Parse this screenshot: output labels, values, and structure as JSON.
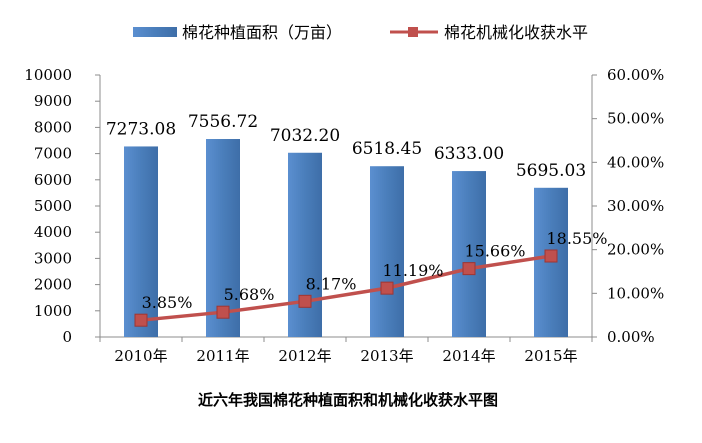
{
  "chart_data": {
    "type": "bar+line",
    "title": "近六年我国棉花种植面积和机械化收获水平图",
    "categories": [
      "2010年",
      "2011年",
      "2012年",
      "2013年",
      "2014年",
      "2015年"
    ],
    "series": [
      {
        "name": "棉花种植面积（万亩）",
        "type": "bar",
        "axis": "left",
        "values": [
          7273.08,
          7556.72,
          7032.2,
          6518.45,
          6333.0,
          5695.03
        ],
        "labels": [
          "7273.08",
          "7556.72",
          "7032.20",
          "6518.45",
          "6333.00",
          "5695.03"
        ],
        "color": "#4a7ebb"
      },
      {
        "name": "棉花机械化收获水平",
        "type": "line",
        "axis": "right",
        "values": [
          3.85,
          5.68,
          8.17,
          11.19,
          15.66,
          18.55
        ],
        "labels": [
          "3.85%",
          "5.68%",
          "8.17%",
          "11.19%",
          "15.66%",
          "18.55%"
        ],
        "color": "#c0504d"
      }
    ],
    "y_left": {
      "range": [
        0,
        10000
      ],
      "ticks": [
        "0",
        "1000",
        "2000",
        "3000",
        "4000",
        "5000",
        "6000",
        "7000",
        "8000",
        "9000",
        "10000"
      ]
    },
    "y_right": {
      "range": [
        0,
        60
      ],
      "ticks": [
        "0.00%",
        "10.00%",
        "20.00%",
        "30.00%",
        "40.00%",
        "50.00%",
        "60.00%"
      ]
    },
    "legend_position": "top",
    "grid": false
  }
}
